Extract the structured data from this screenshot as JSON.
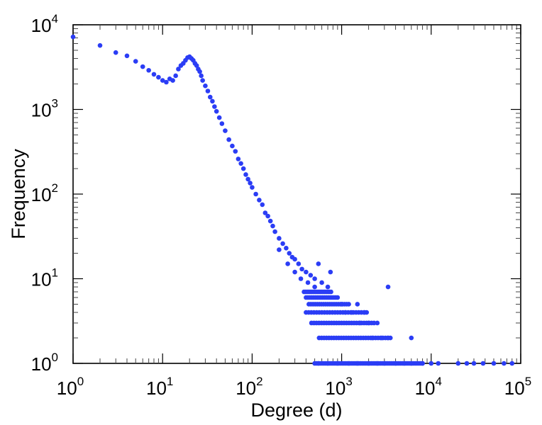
{
  "chart_data": {
    "type": "scatter",
    "title": "",
    "xlabel": "Degree (d)",
    "ylabel": "Frequency",
    "x_scale": "log",
    "y_scale": "log",
    "xlim": [
      1,
      100000
    ],
    "ylim": [
      1,
      10000
    ],
    "grid": false,
    "legend": "none",
    "marker_color": "#2b3df5",
    "x_ticks": [
      {
        "base": "10",
        "exp": "0",
        "value": 1
      },
      {
        "base": "10",
        "exp": "1",
        "value": 10
      },
      {
        "base": "10",
        "exp": "2",
        "value": 100
      },
      {
        "base": "10",
        "exp": "3",
        "value": 1000
      },
      {
        "base": "10",
        "exp": "4",
        "value": 10000
      },
      {
        "base": "10",
        "exp": "5",
        "value": 100000
      }
    ],
    "y_ticks": [
      {
        "base": "10",
        "exp": "0",
        "value": 1
      },
      {
        "base": "10",
        "exp": "1",
        "value": 10
      },
      {
        "base": "10",
        "exp": "2",
        "value": 100
      },
      {
        "base": "10",
        "exp": "3",
        "value": 1000
      },
      {
        "base": "10",
        "exp": "4",
        "value": 10000
      }
    ],
    "points": [
      [
        1,
        7200
      ],
      [
        2,
        5700
      ],
      [
        3,
        4700
      ],
      [
        4,
        4300
      ],
      [
        5,
        3700
      ],
      [
        6,
        3200
      ],
      [
        7,
        2900
      ],
      [
        8,
        2600
      ],
      [
        9,
        2400
      ],
      [
        10,
        2200
      ],
      [
        11,
        2100
      ],
      [
        12,
        2300
      ],
      [
        13,
        2200
      ],
      [
        14,
        2500
      ],
      [
        15,
        3000
      ],
      [
        16,
        3300
      ],
      [
        17,
        3500
      ],
      [
        18,
        3800
      ],
      [
        19,
        4100
      ],
      [
        20,
        4200
      ],
      [
        21,
        4000
      ],
      [
        22,
        3800
      ],
      [
        23,
        3500
      ],
      [
        24,
        3300
      ],
      [
        25,
        3000
      ],
      [
        26,
        2800
      ],
      [
        27,
        2500
      ],
      [
        28,
        2200
      ],
      [
        30,
        1900
      ],
      [
        32,
        1650
      ],
      [
        34,
        1400
      ],
      [
        36,
        1250
      ],
      [
        38,
        1080
      ],
      [
        40,
        950
      ],
      [
        43,
        800
      ],
      [
        46,
        680
      ],
      [
        50,
        560
      ],
      [
        55,
        440
      ],
      [
        60,
        370
      ],
      [
        65,
        320
      ],
      [
        70,
        260
      ],
      [
        75,
        230
      ],
      [
        80,
        200
      ],
      [
        85,
        170
      ],
      [
        90,
        150
      ],
      [
        95,
        135
      ],
      [
        100,
        120
      ],
      [
        110,
        100
      ],
      [
        120,
        85
      ],
      [
        130,
        75
      ],
      [
        140,
        60
      ],
      [
        150,
        55
      ],
      [
        160,
        48
      ],
      [
        170,
        42
      ],
      [
        180,
        36
      ],
      [
        200,
        30
      ],
      [
        220,
        26
      ],
      [
        240,
        23
      ],
      [
        260,
        20
      ],
      [
        280,
        18
      ],
      [
        300,
        17
      ],
      [
        330,
        15
      ],
      [
        360,
        13
      ],
      [
        400,
        12
      ],
      [
        450,
        11
      ],
      [
        500,
        10
      ],
      [
        600,
        9
      ],
      [
        700,
        8
      ],
      [
        750,
        12
      ],
      [
        3300,
        8
      ],
      [
        200,
        22
      ],
      [
        250,
        15
      ],
      [
        300,
        12
      ],
      [
        350,
        10
      ],
      [
        420,
        9
      ],
      [
        500,
        8
      ],
      [
        550,
        15
      ],
      [
        1000,
        5
      ],
      [
        1100,
        4
      ],
      [
        1300,
        4
      ],
      [
        1500,
        5
      ],
      [
        1800,
        4
      ],
      [
        1600,
        3
      ],
      [
        2000,
        3
      ],
      [
        2500,
        3
      ],
      [
        2200,
        2
      ],
      [
        2800,
        2
      ],
      [
        3300,
        2
      ],
      [
        6000,
        2
      ],
      [
        550,
        1
      ],
      [
        700,
        1
      ],
      [
        900,
        1
      ],
      [
        1200,
        1
      ],
      [
        1500,
        1
      ],
      [
        2000,
        1
      ],
      [
        2500,
        1
      ],
      [
        3000,
        1
      ],
      [
        4000,
        1
      ],
      [
        5000,
        1
      ],
      [
        6000,
        1
      ],
      [
        8000,
        1
      ],
      [
        10000,
        1
      ],
      [
        12000,
        1
      ],
      [
        20000,
        1
      ],
      [
        25000,
        1
      ],
      [
        30000,
        1
      ],
      [
        38000,
        1
      ],
      [
        50000,
        1
      ],
      [
        65000,
        1
      ],
      [
        80000,
        1
      ]
    ],
    "bands": [
      {
        "y": 7,
        "x_from": 380,
        "x_to": 760,
        "n": 18
      },
      {
        "y": 6,
        "x_from": 400,
        "x_to": 900,
        "n": 18
      },
      {
        "y": 5,
        "x_from": 430,
        "x_to": 1200,
        "n": 20
      },
      {
        "y": 4,
        "x_from": 400,
        "x_to": 1900,
        "n": 24
      },
      {
        "y": 3,
        "x_from": 460,
        "x_to": 2300,
        "n": 26
      },
      {
        "y": 2,
        "x_from": 560,
        "x_to": 3500,
        "n": 30
      },
      {
        "y": 1,
        "x_from": 500,
        "x_to": 8000,
        "n": 60
      }
    ],
    "bands_reason": "dense horizontal streaks of many overlapping points at integer frequencies"
  }
}
